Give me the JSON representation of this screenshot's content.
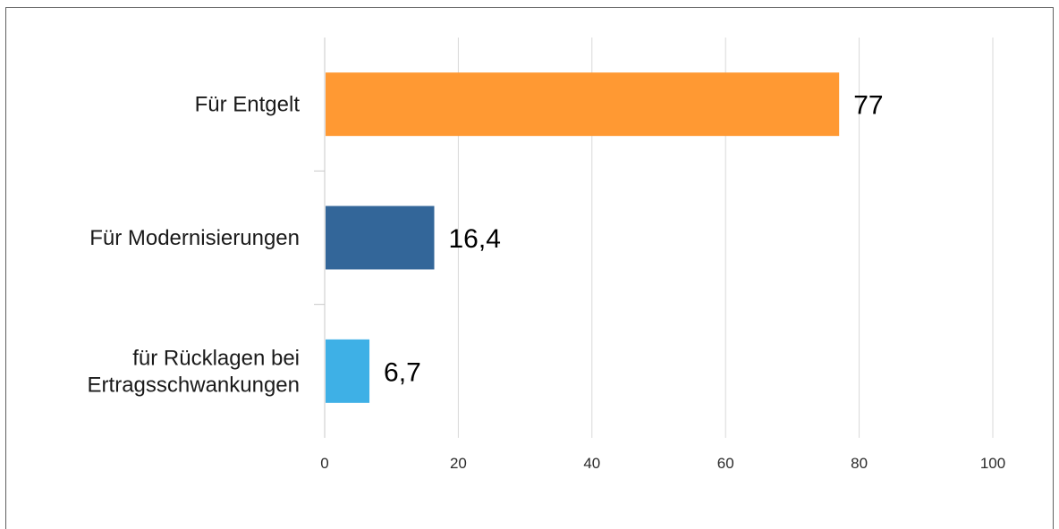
{
  "chart_data": {
    "type": "bar",
    "orientation": "horizontal",
    "categories": [
      [
        "Für Entgelt"
      ],
      [
        "Für Modernisierungen"
      ],
      [
        "für Rücklagen bei",
        "Ertragsschwankungen"
      ]
    ],
    "values": [
      77,
      16.4,
      6.7
    ],
    "value_labels": [
      "77",
      "16,4",
      "6,7"
    ],
    "colors": [
      "#ff9933",
      "#336699",
      "#3eb0e6"
    ],
    "xlim": [
      0,
      100
    ],
    "xticks": [
      0,
      20,
      40,
      60,
      80,
      100
    ],
    "xtick_labels": [
      "0",
      "20",
      "40",
      "60",
      "80",
      "100"
    ],
    "grid": true,
    "legend": "none"
  }
}
